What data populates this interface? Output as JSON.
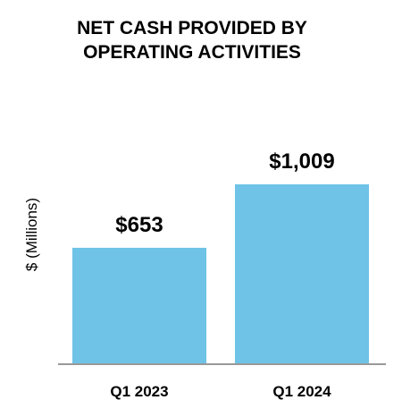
{
  "chart_data": {
    "type": "bar",
    "title": "NET CASH PROVIDED BY OPERATING ACTIVITIES",
    "title_lines": [
      "NET CASH PROVIDED BY",
      "OPERATING ACTIVITIES"
    ],
    "ylabel": "$ (Millions)",
    "xlabel": "",
    "categories": [
      "Q1 2023",
      "Q1 2024"
    ],
    "values": [
      653,
      1009
    ],
    "data_labels": [
      "$653",
      "$1,009"
    ],
    "ylim": [
      0,
      1180
    ],
    "grid": false,
    "bar_color": "#6EC3E7",
    "axis_color": "#999999"
  }
}
